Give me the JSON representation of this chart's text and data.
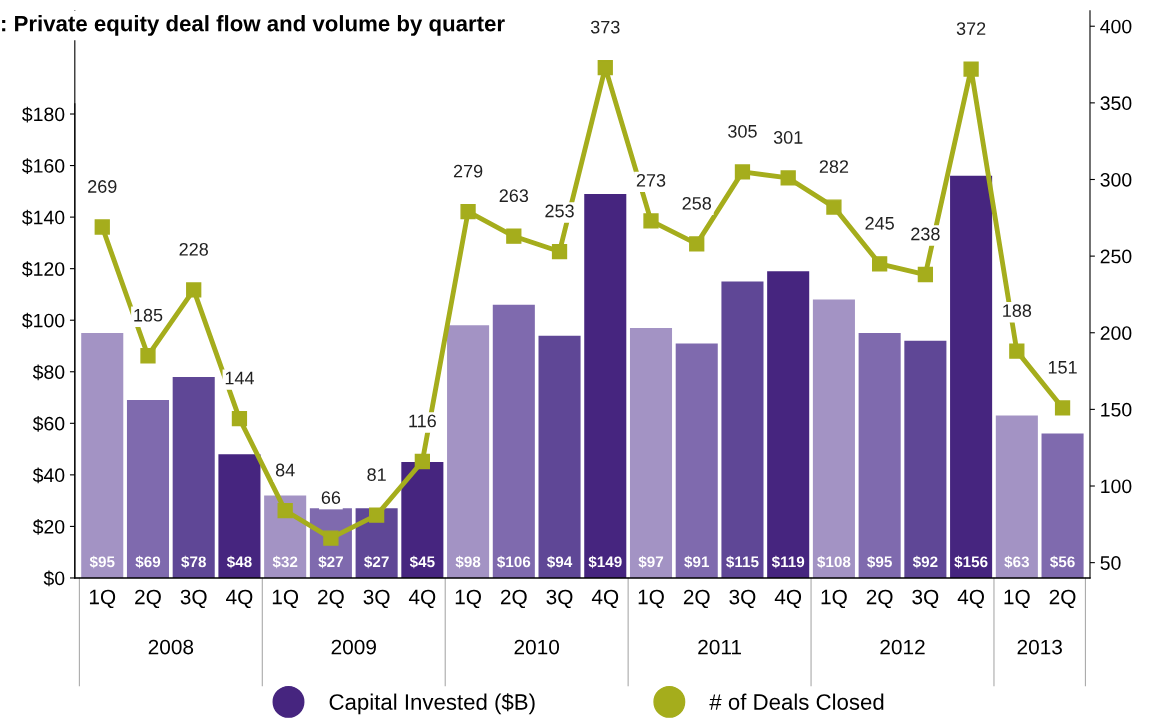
{
  "chart_data": {
    "type": "bar",
    "title": ": Private equity deal flow and volume by quarter",
    "categories": [
      "1Q",
      "2Q",
      "3Q",
      "4Q",
      "1Q",
      "2Q",
      "3Q",
      "4Q",
      "1Q",
      "2Q",
      "3Q",
      "4Q",
      "1Q",
      "2Q",
      "3Q",
      "4Q",
      "1Q",
      "2Q",
      "3Q",
      "4Q",
      "1Q",
      "2Q"
    ],
    "annotations": [
      "2008",
      "2009",
      "2010",
      "2011",
      "2012",
      "2013"
    ],
    "series": [
      {
        "name": "Capital Invested ($B)",
        "color": "#46257f",
        "colors": [
          "#a393c4",
          "#7f6aae",
          "#5f4796",
          "#46257f",
          "#a393c4",
          "#7f6aae",
          "#5f4796",
          "#46257f",
          "#a393c4",
          "#7f6aae",
          "#5f4796",
          "#46257f",
          "#a393c4",
          "#7f6aae",
          "#5f4796",
          "#46257f",
          "#a393c4",
          "#7f6aae",
          "#5f4796",
          "#46257f",
          "#a393c4",
          "#7f6aae"
        ],
        "values": [
          95,
          69,
          78,
          48,
          32,
          27,
          27,
          45,
          98,
          106,
          94,
          149,
          97,
          91,
          115,
          119,
          108,
          95,
          92,
          156,
          63,
          56
        ],
        "value_labels": [
          "$95",
          "$69",
          "$78",
          "$48",
          "$32",
          "$27",
          "$27",
          "$45",
          "$98",
          "$106",
          "$94",
          "$149",
          "$97",
          "$91",
          "$115",
          "$119",
          "$108",
          "$95",
          "$92",
          "$156",
          "$63",
          "$56"
        ]
      },
      {
        "name": "# of Deals Closed",
        "type": "line",
        "axis": "y2",
        "color": "#a5ad1c",
        "marker": "square",
        "line_style": "solid",
        "data_labels": true,
        "values": [
          269,
          185,
          228,
          144,
          84,
          66,
          81,
          116,
          279,
          263,
          253,
          373,
          273,
          258,
          305,
          301,
          282,
          245,
          238,
          372,
          188,
          151
        ]
      }
    ],
    "ylim": [
      0,
      220
    ],
    "yticks": [
      {
        "value": 0,
        "label": "$0"
      },
      {
        "value": 20,
        "label": "$20"
      },
      {
        "value": 40,
        "label": "$40"
      },
      {
        "value": 60,
        "label": "$60"
      },
      {
        "value": 80,
        "label": "$80"
      },
      {
        "value": 100,
        "label": "$100"
      },
      {
        "value": 120,
        "label": "$120"
      },
      {
        "value": 140,
        "label": "$140"
      },
      {
        "value": 160,
        "label": "$160"
      },
      {
        "value": 180,
        "label": "$180"
      }
    ],
    "y2lim": [
      40,
      410
    ],
    "y2ticks": [
      50,
      100,
      150,
      200,
      250,
      300,
      350,
      400
    ],
    "grid": false,
    "legend": "bottom"
  }
}
